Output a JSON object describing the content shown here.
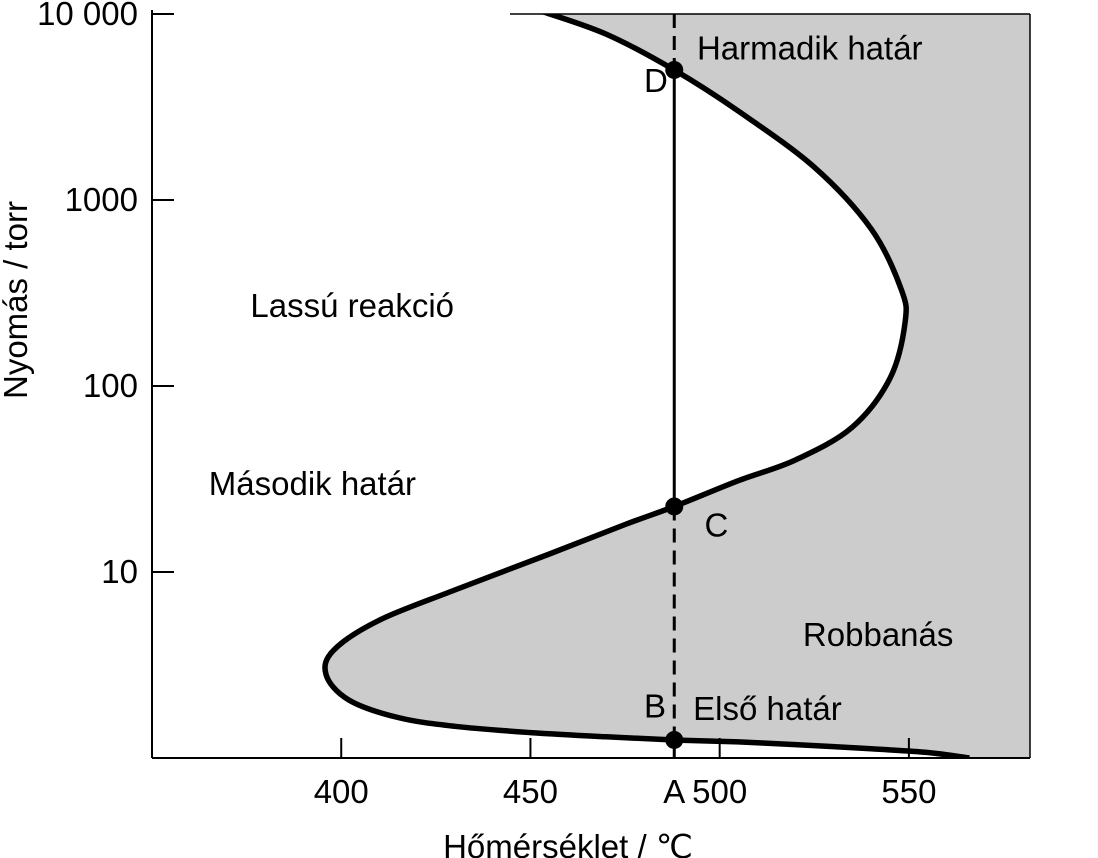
{
  "chart_data": {
    "type": "line",
    "title": "",
    "xlabel": "Hőmérséklet / ℃",
    "ylabel": "Nyomás / torr",
    "x_scale": "linear",
    "y_scale": "log",
    "xlim": [
      350,
      582
    ],
    "ylim": [
      1,
      10000
    ],
    "grid": false,
    "x_ticks": [
      {
        "value": 400,
        "label": "400"
      },
      {
        "value": 450,
        "label": "450"
      },
      {
        "value": 488,
        "label": "A"
      },
      {
        "value": 500,
        "label": "500"
      },
      {
        "value": 550,
        "label": "550"
      }
    ],
    "y_ticks": [
      {
        "value": 10,
        "label": "10"
      },
      {
        "value": 100,
        "label": "100"
      },
      {
        "value": 1000,
        "label": "1000"
      },
      {
        "value": 10000,
        "label": "10 000"
      }
    ],
    "series": [
      {
        "name": "",
        "x": [
          566,
          555,
          540,
          520,
          505,
          488,
          470,
          450,
          430,
          415,
          402,
          396,
          398,
          410,
          430,
          455,
          475,
          488,
          505,
          520,
          535,
          545,
          549,
          548,
          540,
          525,
          505,
          488,
          470,
          452
        ],
        "y": [
          1.0,
          1.07,
          1.12,
          1.18,
          1.22,
          1.25,
          1.3,
          1.37,
          1.48,
          1.65,
          2.05,
          2.8,
          3.8,
          5.5,
          8.0,
          12.5,
          18.0,
          22.5,
          31,
          40,
          60,
          110,
          220,
          330,
          700,
          1500,
          3000,
          5000,
          7800,
          10500
        ]
      }
    ],
    "vertical_line": {
      "x": 488,
      "y_solid_from": 22.5,
      "y_solid_to": 5000
    },
    "points": [
      {
        "name": "B",
        "x": 488,
        "y": 1.25
      },
      {
        "name": "C",
        "x": 488,
        "y": 22.5
      },
      {
        "name": "D",
        "x": 488,
        "y": 5000
      }
    ],
    "annotations": [
      {
        "text": "Harmadik határ",
        "x": 494,
        "y": 5700
      },
      {
        "text": "D",
        "x": 480,
        "y": 3800
      },
      {
        "text": "Lassú reakció",
        "x": 376,
        "y": 235
      },
      {
        "text": "Második határ",
        "x": 365,
        "y": 26
      },
      {
        "text": "C",
        "x": 496,
        "y": 15.5
      },
      {
        "text": "Robbanás",
        "x": 522,
        "y": 4.0
      },
      {
        "text": "B",
        "x": 480,
        "y": 1.65
      },
      {
        "text": "Első határ",
        "x": 493,
        "y": 1.6
      }
    ],
    "regions": [
      {
        "name": "Lassú reakció",
        "fill": "#ffffff"
      },
      {
        "name": "Robbanás",
        "fill": "#cccccc"
      }
    ]
  }
}
